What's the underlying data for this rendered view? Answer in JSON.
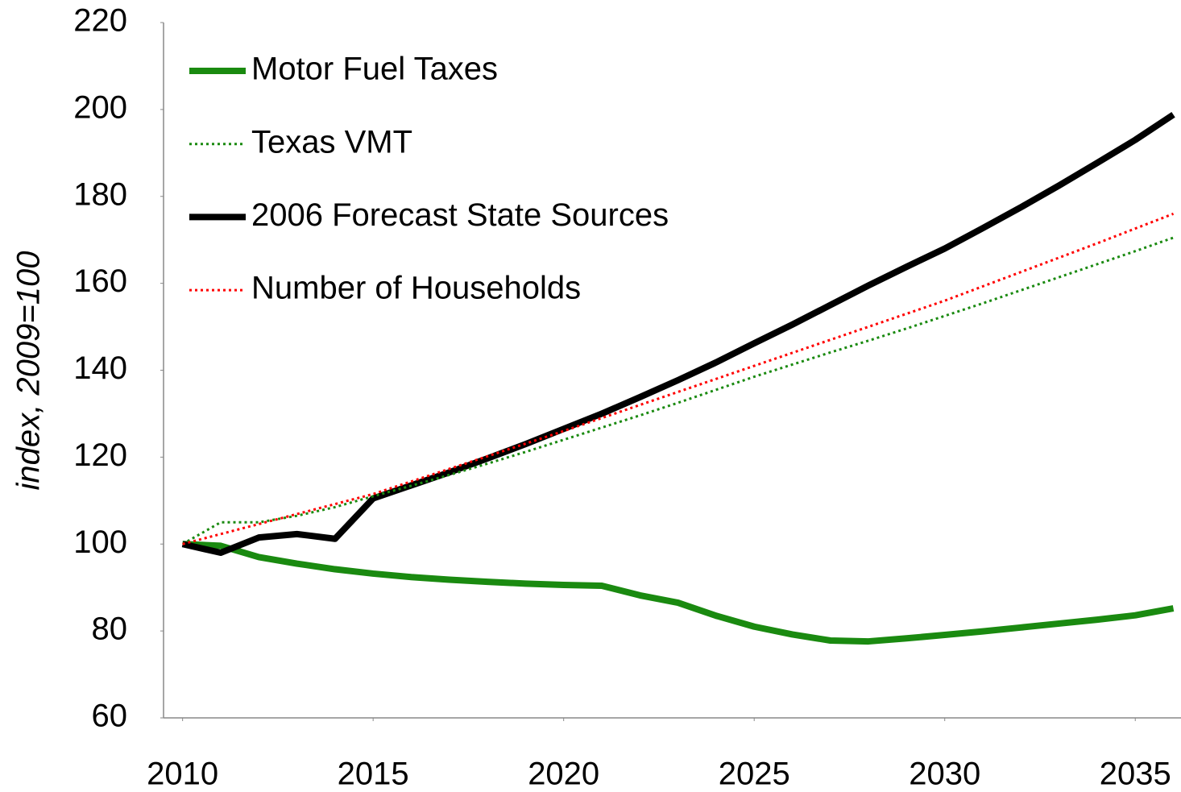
{
  "chart_data": {
    "type": "line",
    "y_label": "index, 2009=100",
    "x": [
      2010,
      2011,
      2012,
      2013,
      2014,
      2015,
      2016,
      2017,
      2018,
      2019,
      2020,
      2021,
      2022,
      2023,
      2024,
      2025,
      2026,
      2027,
      2028,
      2029,
      2030,
      2031,
      2032,
      2033,
      2034,
      2035,
      2036
    ],
    "xlim": [
      2009.5,
      2036.2
    ],
    "xticks": [
      2010,
      2015,
      2020,
      2025,
      2030,
      2035
    ],
    "ylim": [
      60,
      220
    ],
    "yticks": [
      60,
      80,
      100,
      120,
      140,
      160,
      180,
      200,
      220
    ],
    "legend": "top-left",
    "series": [
      {
        "name": "Motor Fuel Taxes",
        "color": "#1a8a10",
        "style": "solid",
        "values": [
          100,
          99.6,
          97,
          95.5,
          94.2,
          93.2,
          92.4,
          91.8,
          91.3,
          90.9,
          90.6,
          90.4,
          88.2,
          86.5,
          83.5,
          81,
          79.2,
          77.8,
          77.6,
          78.3,
          79.1,
          79.9,
          80.8,
          81.7,
          82.6,
          83.6,
          85.2
        ]
      },
      {
        "name": "Texas VMT",
        "color": "#1a8a10",
        "style": "dotted",
        "values": [
          100,
          105,
          105,
          106.5,
          108.5,
          111,
          113.4,
          115.9,
          118.5,
          121.2,
          124,
          126.8,
          129.6,
          132.5,
          135.5,
          138.5,
          141.3,
          144.1,
          146.8,
          149.6,
          152.5,
          155.4,
          158.4,
          161.4,
          164.4,
          167.4,
          170.5
        ]
      },
      {
        "name": "2006 Forecast State Sources",
        "color": "#000000",
        "style": "solid",
        "values": [
          100,
          98,
          101.5,
          102.3,
          101.2,
          110.5,
          113.5,
          116.5,
          119.7,
          123,
          126.5,
          130,
          133.8,
          137.7,
          141.8,
          146.2,
          150.5,
          155,
          159.5,
          163.8,
          168,
          172.7,
          177.5,
          182.5,
          187.7,
          193,
          198.8
        ]
      },
      {
        "name": "Number of Households",
        "color": "#ff0000",
        "style": "dotted",
        "values": [
          100,
          102.3,
          104.6,
          106.9,
          109.2,
          111.5,
          114.4,
          117.3,
          120.2,
          123.1,
          126,
          129,
          132,
          135,
          138,
          141,
          144,
          147,
          150,
          153,
          156,
          159.3,
          162.6,
          165.9,
          169.2,
          172.6,
          176
        ]
      }
    ]
  }
}
